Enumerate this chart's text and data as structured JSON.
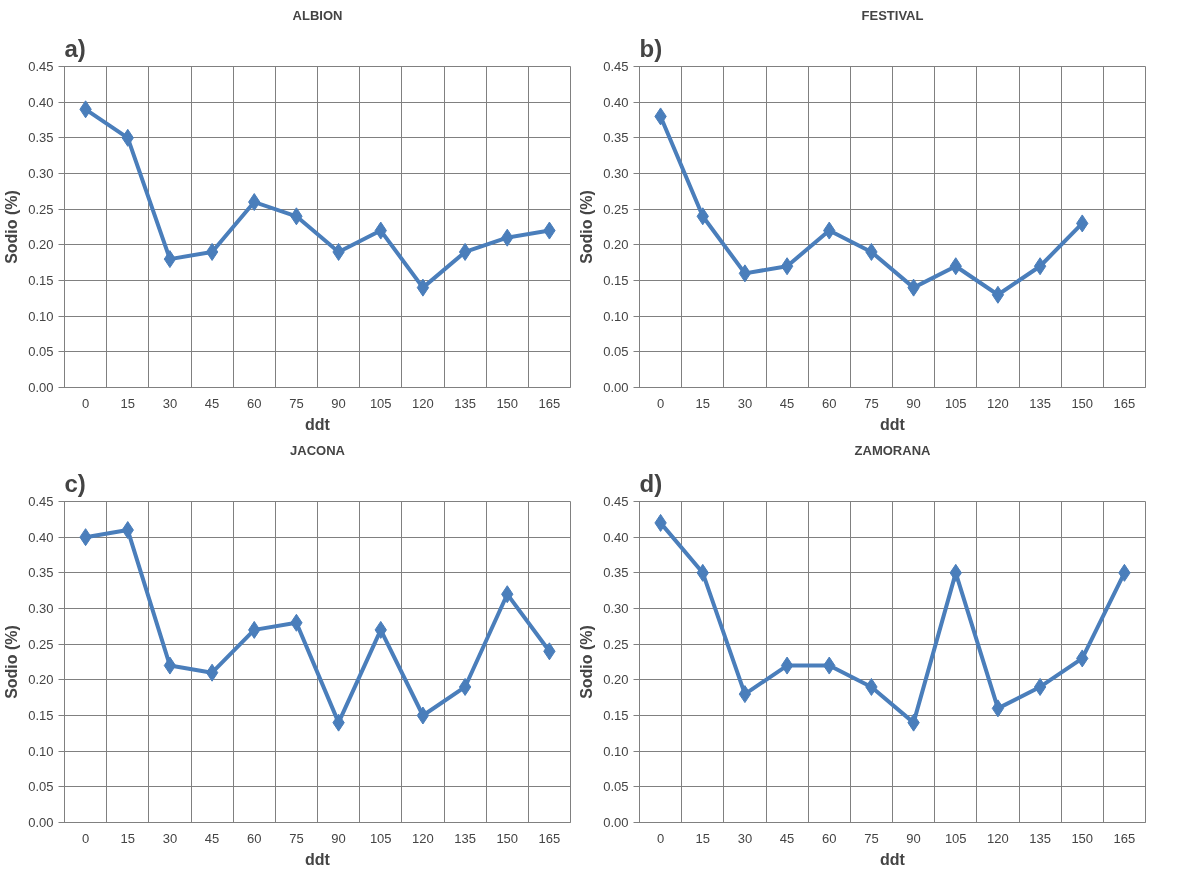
{
  "chart_data": [
    {
      "type": "line",
      "title": "ALBION",
      "xlabel": "ddt",
      "ylabel": "Sodio (%)",
      "annotations": [
        "a)"
      ],
      "categories": [
        "0",
        "15",
        "30",
        "45",
        "60",
        "75",
        "90",
        "105",
        "120",
        "135",
        "150",
        "165"
      ],
      "ylim": [
        0,
        0.45
      ],
      "yticks": [
        {
          "value": 0,
          "label": "0.00"
        },
        {
          "value": 0.05,
          "label": "0.05"
        },
        {
          "value": 0.1,
          "label": "0.10"
        },
        {
          "value": 0.15,
          "label": "0.15"
        },
        {
          "value": 0.2,
          "label": "0.20"
        },
        {
          "value": 0.25,
          "label": "0.25"
        },
        {
          "value": 0.3,
          "label": "0.30"
        },
        {
          "value": 0.35,
          "label": "0.35"
        },
        {
          "value": 0.4,
          "label": "0.40"
        },
        {
          "value": 0.45,
          "label": "0.45"
        }
      ],
      "grid": true,
      "marker": "diamond",
      "line_style": "solid",
      "series": [
        {
          "color": "#4a7ebb",
          "values": [
            0.39,
            0.35,
            0.18,
            0.19,
            0.26,
            0.24,
            0.19,
            0.22,
            0.14,
            0.19,
            0.21,
            0.22
          ]
        }
      ]
    },
    {
      "type": "line",
      "title": "FESTIVAL",
      "xlabel": "ddt",
      "ylabel": "Sodio (%)",
      "annotations": [
        "b)"
      ],
      "categories": [
        "0",
        "15",
        "30",
        "45",
        "60",
        "75",
        "90",
        "105",
        "120",
        "135",
        "150",
        "165"
      ],
      "ylim": [
        0,
        0.45
      ],
      "yticks": [
        {
          "value": 0,
          "label": "0.00"
        },
        {
          "value": 0.05,
          "label": "0.05"
        },
        {
          "value": 0.1,
          "label": "0.10"
        },
        {
          "value": 0.15,
          "label": "0.15"
        },
        {
          "value": 0.2,
          "label": "0.20"
        },
        {
          "value": 0.25,
          "label": "0.25"
        },
        {
          "value": 0.3,
          "label": "0.30"
        },
        {
          "value": 0.35,
          "label": "0.35"
        },
        {
          "value": 0.4,
          "label": "0.40"
        },
        {
          "value": 0.45,
          "label": "0.45"
        }
      ],
      "grid": true,
      "marker": "diamond",
      "line_style": "solid",
      "series": [
        {
          "color": "#4a7ebb",
          "values": [
            0.38,
            0.24,
            0.16,
            0.17,
            0.22,
            0.19,
            0.14,
            0.17,
            0.13,
            0.17,
            0.23,
            null
          ]
        }
      ]
    },
    {
      "type": "line",
      "title": "JACONA",
      "xlabel": "ddt",
      "ylabel": "Sodio (%)",
      "annotations": [
        "c)"
      ],
      "categories": [
        "0",
        "15",
        "30",
        "45",
        "60",
        "75",
        "90",
        "105",
        "120",
        "135",
        "150",
        "165"
      ],
      "ylim": [
        0,
        0.45
      ],
      "yticks": [
        {
          "value": 0,
          "label": "0.00"
        },
        {
          "value": 0.05,
          "label": "0.05"
        },
        {
          "value": 0.1,
          "label": "0.10"
        },
        {
          "value": 0.15,
          "label": "0.15"
        },
        {
          "value": 0.2,
          "label": "0.20"
        },
        {
          "value": 0.25,
          "label": "0.25"
        },
        {
          "value": 0.3,
          "label": "0.30"
        },
        {
          "value": 0.35,
          "label": "0.35"
        },
        {
          "value": 0.4,
          "label": "0.40"
        },
        {
          "value": 0.45,
          "label": "0.45"
        }
      ],
      "grid": true,
      "marker": "diamond",
      "line_style": "solid",
      "series": [
        {
          "color": "#4a7ebb",
          "values": [
            0.4,
            0.41,
            0.22,
            0.21,
            0.27,
            0.28,
            0.14,
            0.27,
            0.15,
            0.19,
            0.32,
            0.24
          ]
        }
      ]
    },
    {
      "type": "line",
      "title": "ZAMORANA",
      "xlabel": "ddt",
      "ylabel": "Sodio (%)",
      "annotations": [
        "d)"
      ],
      "categories": [
        "0",
        "15",
        "30",
        "45",
        "60",
        "75",
        "90",
        "105",
        "120",
        "135",
        "150",
        "165"
      ],
      "ylim": [
        0,
        0.45
      ],
      "yticks": [
        {
          "value": 0,
          "label": "0.00"
        },
        {
          "value": 0.05,
          "label": "0.05"
        },
        {
          "value": 0.1,
          "label": "0.10"
        },
        {
          "value": 0.15,
          "label": "0.15"
        },
        {
          "value": 0.2,
          "label": "0.20"
        },
        {
          "value": 0.25,
          "label": "0.25"
        },
        {
          "value": 0.3,
          "label": "0.30"
        },
        {
          "value": 0.35,
          "label": "0.35"
        },
        {
          "value": 0.4,
          "label": "0.40"
        },
        {
          "value": 0.45,
          "label": "0.45"
        }
      ],
      "grid": true,
      "marker": "diamond",
      "line_style": "solid",
      "series": [
        {
          "color": "#4a7ebb",
          "values": [
            0.42,
            0.35,
            0.18,
            0.22,
            0.22,
            0.19,
            0.14,
            0.35,
            0.16,
            0.19,
            0.23,
            0.35
          ]
        }
      ]
    }
  ]
}
